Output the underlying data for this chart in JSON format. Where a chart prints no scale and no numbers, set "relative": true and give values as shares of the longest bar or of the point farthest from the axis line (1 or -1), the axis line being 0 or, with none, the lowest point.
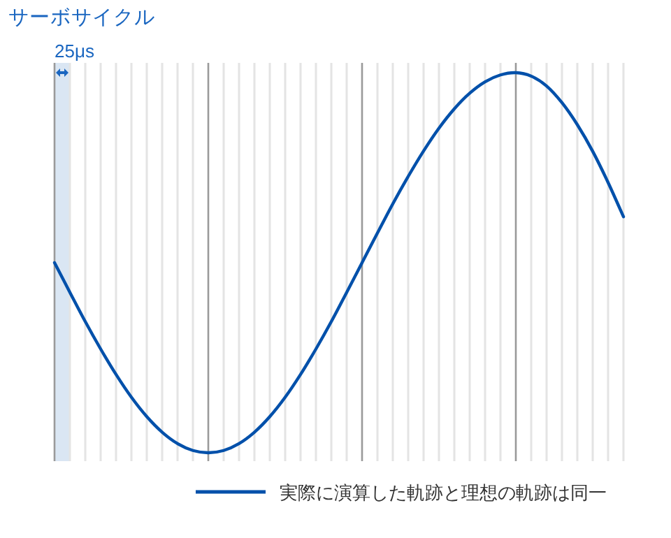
{
  "chart_data": {
    "type": "line",
    "title": "サーボサイクル",
    "relative": true,
    "grid": "x",
    "legend": "bottom",
    "line_style": "solid",
    "marker": "none",
    "categories": [
      null,
      null,
      null,
      null,
      null,
      null,
      null,
      null,
      null,
      null,
      null,
      null,
      null,
      null,
      null,
      null,
      null,
      null,
      null,
      null,
      null,
      null,
      null,
      null,
      null,
      null,
      null,
      null,
      null,
      null,
      null,
      null,
      null,
      null,
      null,
      null,
      null,
      null
    ],
    "series": [
      {
        "name": "実際に演算した軌跡と理想の軌跡は同一",
        "color": "#0050aa",
        "values": [
          0.5,
          0.422,
          0.345,
          0.273,
          0.206,
          0.146,
          0.095,
          0.054,
          0.024,
          0.006,
          0,
          0.006,
          0.024,
          0.054,
          0.095,
          0.146,
          0.206,
          0.273,
          0.345,
          0.422,
          0.5,
          0.578,
          0.655,
          0.727,
          0.794,
          0.854,
          0.905,
          0.946,
          0.976,
          0.994,
          1,
          0.991,
          0.965,
          0.921,
          0.863,
          0.793,
          0.711,
          0.621
        ]
      }
    ],
    "annotations": [
      "25μs"
    ]
  }
}
